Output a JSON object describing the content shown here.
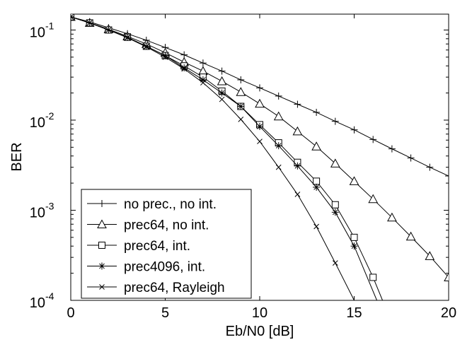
{
  "chart_data": {
    "type": "line",
    "xlabel": "Eb/N0 [dB]",
    "ylabel": "BER",
    "xlim": [
      0,
      20
    ],
    "ylim": [
      0.0001,
      0.15
    ],
    "yscale": "log",
    "grid": false,
    "legend_position": "bottom-left",
    "x_ticks": [
      0,
      5,
      10,
      15,
      20
    ],
    "y_ticks": [
      {
        "value": 0.1,
        "base": "10",
        "exp": "-1"
      },
      {
        "value": 0.01,
        "base": "10",
        "exp": "-2"
      },
      {
        "value": 0.001,
        "base": "10",
        "exp": "-3"
      },
      {
        "value": 0.0001,
        "base": "10",
        "exp": "-4"
      }
    ],
    "series": [
      {
        "name": "no prec., no int.",
        "marker": "plus",
        "x": [
          0,
          1,
          2,
          3,
          4,
          5,
          6,
          7,
          8,
          9,
          10,
          11,
          12,
          13,
          14,
          15,
          16,
          17,
          18,
          19,
          20
        ],
        "y": [
          0.14,
          0.123,
          0.106,
          0.091,
          0.077,
          0.064,
          0.053,
          0.043,
          0.035,
          0.028,
          0.0228,
          0.0185,
          0.015,
          0.0122,
          0.0097,
          0.0078,
          0.0061,
          0.0048,
          0.0038,
          0.003,
          0.0024
        ]
      },
      {
        "name": "prec64, no int.",
        "marker": "triangle",
        "x": [
          0,
          1,
          2,
          3,
          4,
          5,
          6,
          7,
          8,
          9,
          10,
          11,
          12,
          13,
          14,
          15,
          16,
          17,
          18,
          19,
          20
        ],
        "y": [
          0.14,
          0.12,
          0.102,
          0.085,
          0.07,
          0.056,
          0.044,
          0.035,
          0.027,
          0.0205,
          0.0152,
          0.011,
          0.0075,
          0.0051,
          0.0033,
          0.0021,
          0.00133,
          0.00083,
          0.00051,
          0.00031,
          0.00018
        ]
      },
      {
        "name": "prec64, int.",
        "marker": "square",
        "x": [
          0,
          1,
          2,
          3,
          4,
          5,
          6,
          7,
          8,
          9,
          10,
          11,
          12,
          13,
          14,
          15,
          16,
          16.5
        ],
        "y": [
          0.14,
          0.12,
          0.1,
          0.083,
          0.066,
          0.052,
          0.04,
          0.03,
          0.021,
          0.0142,
          0.0089,
          0.0056,
          0.0034,
          0.0021,
          0.00115,
          0.0005,
          0.00018,
          0.0001
        ]
      },
      {
        "name": "prec4096, int.",
        "marker": "star",
        "x": [
          0,
          1,
          2,
          3,
          4,
          5,
          6,
          7,
          8,
          9,
          10,
          11,
          12,
          13,
          14,
          15,
          16.2
        ],
        "y": [
          0.14,
          0.12,
          0.1,
          0.083,
          0.066,
          0.052,
          0.038,
          0.028,
          0.02,
          0.0142,
          0.0085,
          0.0052,
          0.0031,
          0.0018,
          0.00095,
          0.0004,
          0.0001
        ]
      },
      {
        "name": "prec64, Rayleigh",
        "marker": "x",
        "x": [
          0,
          1,
          2,
          3,
          4,
          5,
          6,
          7,
          8,
          9,
          10,
          11,
          12,
          13,
          14,
          15
        ],
        "y": [
          0.14,
          0.12,
          0.1,
          0.082,
          0.065,
          0.05,
          0.037,
          0.026,
          0.017,
          0.0102,
          0.0058,
          0.003,
          0.0015,
          0.00066,
          0.00026,
          0.0001
        ]
      }
    ]
  }
}
